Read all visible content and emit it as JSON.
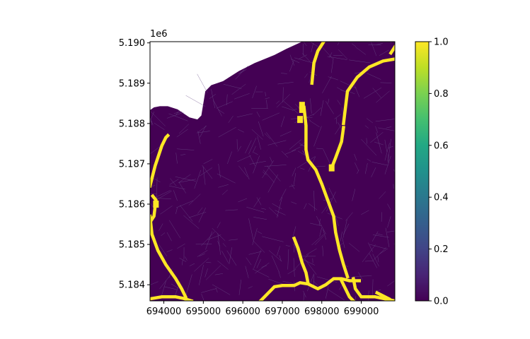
{
  "chart_data": {
    "type": "heatmap",
    "title": "",
    "xlabel": "",
    "ylabel": "",
    "x_ticks": [
      "694000",
      "695000",
      "696000",
      "697000",
      "698000",
      "699000"
    ],
    "y_ticks": [
      "5.184",
      "5.185",
      "5.186",
      "5.187",
      "5.188",
      "5.189",
      "5.190"
    ],
    "y_offset_label": "1e6",
    "xlim": [
      693650,
      699850
    ],
    "ylim": [
      5183600,
      5190030
    ],
    "colorbar": {
      "colormap": "viridis",
      "range": [
        0.0,
        1.0
      ],
      "ticks": [
        "0.0",
        "0.2",
        "0.4",
        "0.6",
        "0.8",
        "1.0"
      ]
    },
    "background_value": 0.0,
    "channel_value": 1.0,
    "colors": {
      "low": "#440154",
      "high": "#fde725",
      "mesh_line": "#6b4f8a"
    },
    "domain_boundary_top": [
      [
        693650,
        5188330
      ],
      [
        693750,
        5188400
      ],
      [
        693900,
        5188430
      ],
      [
        694100,
        5188430
      ],
      [
        694350,
        5188350
      ],
      [
        694650,
        5188150
      ],
      [
        694850,
        5188100
      ],
      [
        694950,
        5188200
      ],
      [
        695050,
        5188800
      ],
      [
        695200,
        5188950
      ],
      [
        695500,
        5189050
      ],
      [
        695900,
        5189300
      ],
      [
        696300,
        5189500
      ],
      [
        696800,
        5189700
      ],
      [
        697100,
        5189850
      ],
      [
        697500,
        5190030
      ],
      [
        699850,
        5190030
      ]
    ],
    "channels": [
      [
        [
          693650,
          5186450
        ],
        [
          693780,
          5186950
        ],
        [
          693950,
          5187450
        ],
        [
          694050,
          5187650
        ],
        [
          694100,
          5187700
        ]
      ],
      [
        [
          693650,
          5185550
        ],
        [
          693750,
          5185700
        ],
        [
          693800,
          5186100
        ],
        [
          693720,
          5186200
        ]
      ],
      [
        [
          693650,
          5185700
        ],
        [
          693700,
          5185250
        ],
        [
          693850,
          5184850
        ],
        [
          694050,
          5184500
        ],
        [
          694300,
          5184150
        ],
        [
          694450,
          5183900
        ],
        [
          694550,
          5183700
        ]
      ],
      [
        [
          693650,
          5183650
        ],
        [
          693950,
          5183700
        ],
        [
          694300,
          5183700
        ],
        [
          694500,
          5183660
        ],
        [
          694700,
          5183600
        ]
      ],
      [
        [
          696450,
          5183600
        ],
        [
          696650,
          5183800
        ],
        [
          696800,
          5183950
        ],
        [
          697000,
          5183980
        ],
        [
          697300,
          5183980
        ],
        [
          697450,
          5184050
        ],
        [
          697650,
          5184020
        ],
        [
          697900,
          5183900
        ],
        [
          698100,
          5184000
        ],
        [
          698300,
          5184150
        ],
        [
          698500,
          5184150
        ],
        [
          698700,
          5184100
        ],
        [
          698950,
          5184100
        ]
      ],
      [
        [
          697300,
          5185150
        ],
        [
          697400,
          5184900
        ],
        [
          697500,
          5184550
        ],
        [
          697600,
          5184300
        ],
        [
          697650,
          5184050
        ]
      ],
      [
        [
          697550,
          5188400
        ],
        [
          697600,
          5187950
        ],
        [
          697600,
          5187350
        ],
        [
          697650,
          5187100
        ],
        [
          697850,
          5186850
        ],
        [
          698000,
          5186500
        ],
        [
          698150,
          5186100
        ],
        [
          698300,
          5185700
        ],
        [
          698350,
          5185300
        ],
        [
          698450,
          5184850
        ],
        [
          698550,
          5184500
        ],
        [
          698650,
          5184200
        ]
      ],
      [
        [
          697750,
          5189000
        ],
        [
          697800,
          5189500
        ],
        [
          697900,
          5189800
        ],
        [
          698050,
          5190030
        ]
      ],
      [
        [
          698550,
          5187900
        ],
        [
          698500,
          5187550
        ],
        [
          698350,
          5187150
        ],
        [
          698250,
          5186900
        ]
      ],
      [
        [
          698550,
          5188000
        ],
        [
          698650,
          5188800
        ],
        [
          698900,
          5189150
        ],
        [
          699200,
          5189400
        ],
        [
          699550,
          5189550
        ],
        [
          699850,
          5189600
        ]
      ],
      [
        [
          699850,
          5189900
        ],
        [
          699750,
          5189750
        ]
      ],
      [
        [
          698800,
          5184150
        ],
        [
          698850,
          5183900
        ],
        [
          699000,
          5183700
        ],
        [
          699350,
          5183700
        ],
        [
          699600,
          5183650
        ],
        [
          699850,
          5183600
        ]
      ],
      [
        [
          698500,
          5184100
        ],
        [
          698600,
          5183900
        ],
        [
          698700,
          5183700
        ],
        [
          698800,
          5183600
        ]
      ],
      [
        [
          699400,
          5183800
        ],
        [
          699700,
          5183650
        ]
      ]
    ],
    "channel_blobs": [
      [
        697500,
        5188350
      ],
      [
        697450,
        5188100
      ],
      [
        697500,
        5188450
      ],
      [
        698250,
        5186900
      ],
      [
        693800,
        5186000
      ]
    ]
  }
}
